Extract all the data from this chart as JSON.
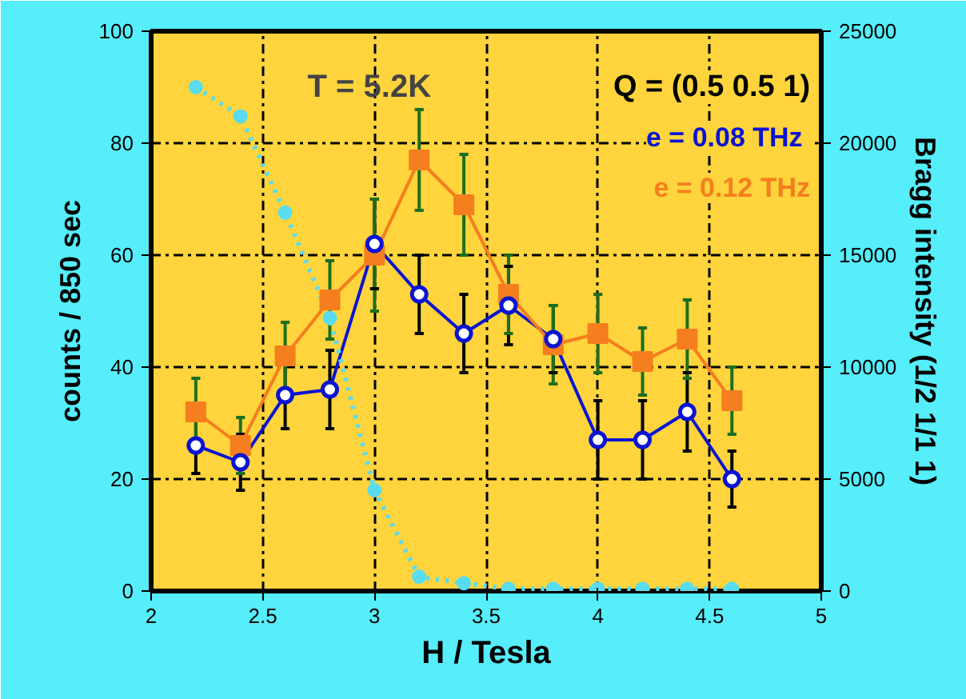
{
  "chart_data": {
    "type": "line",
    "xlabel": "H / Tesla",
    "ylabel": "counts / 850 sec",
    "y2label": "Bragg intensity (1/2 1/1 1)",
    "x": [
      2.2,
      2.4,
      2.6,
      2.8,
      3.0,
      3.2,
      3.4,
      3.6,
      3.8,
      4.0,
      4.2,
      4.4,
      4.6
    ],
    "xlim": [
      2,
      5
    ],
    "xticks": [
      2,
      2.5,
      3,
      3.5,
      4,
      4.5,
      5
    ],
    "ylim": [
      0,
      100
    ],
    "yticks": [
      0,
      20,
      40,
      60,
      80,
      100
    ],
    "y2lim": [
      0,
      25000
    ],
    "y2ticks": [
      0,
      5000,
      10000,
      15000,
      20000,
      25000
    ],
    "grid": true,
    "legend": "top right",
    "annotations": [
      "T = 5.2K",
      "Q = (0.5 0.5 1)"
    ],
    "series": [
      {
        "name": "e = 0.08  THz",
        "color": "#0a14d2",
        "marker": "circle",
        "line_style": "solid",
        "values": [
          26,
          23,
          35,
          36,
          62,
          53,
          46,
          51,
          45,
          27,
          27,
          32,
          20
        ],
        "errors": [
          5,
          5,
          6,
          7,
          8,
          7,
          7,
          7,
          6,
          7,
          7,
          7,
          5
        ]
      },
      {
        "name": "e = 0.12 THz",
        "color": "#f57e1e",
        "marker": "square",
        "line_style": "solid",
        "values": [
          32,
          26,
          42,
          52,
          60,
          77,
          69,
          53,
          44,
          46,
          41,
          45,
          34
        ],
        "errors": [
          6,
          5,
          6,
          7,
          10,
          9,
          9,
          7,
          7,
          7,
          6,
          7,
          6
        ]
      },
      {
        "color": "#5adcf0",
        "marker": "circle",
        "line_style": "dotted",
        "axis": "y2",
        "values": [
          22500,
          21200,
          16900,
          12200,
          4500,
          640,
          350,
          100,
          100,
          100,
          100,
          100,
          100
        ]
      }
    ]
  }
}
